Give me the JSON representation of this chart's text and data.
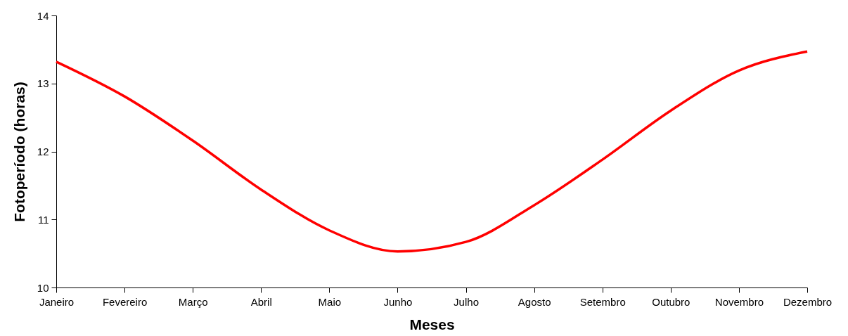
{
  "chart_data": {
    "type": "line",
    "xlabel": "Meses",
    "ylabel": "Fotoperíodo (horas)",
    "categories": [
      "Janeiro",
      "Fevereiro",
      "Março",
      "Abril",
      "Maio",
      "Junho",
      "Julho",
      "Agosto",
      "Setembro",
      "Outubro",
      "Novembro",
      "Dezembro"
    ],
    "series": [
      {
        "color": "#ff0000",
        "values": [
          13.32,
          12.81,
          12.16,
          11.44,
          10.84,
          10.53,
          10.67,
          11.21,
          11.88,
          12.6,
          13.19,
          13.47
        ]
      }
    ],
    "ylim": [
      10,
      14
    ],
    "yticks": [
      10,
      11,
      12,
      13,
      14
    ],
    "grid": false,
    "marker": "none",
    "line_style": "solid"
  }
}
